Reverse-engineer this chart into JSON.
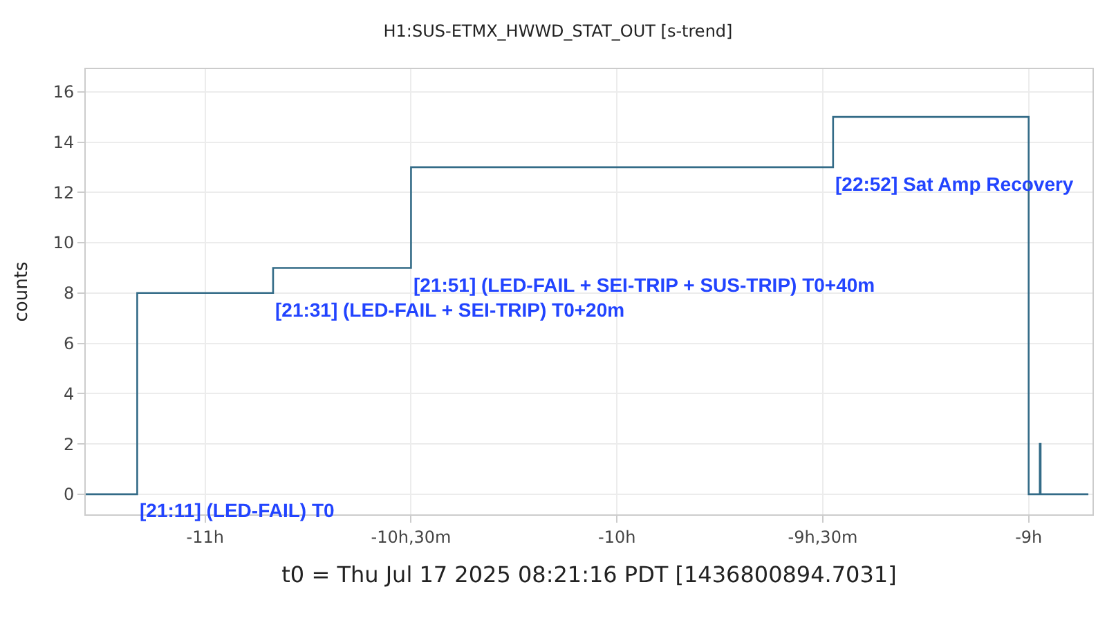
{
  "chart_data": {
    "type": "step",
    "title": "H1:SUS-ETMX_HWWD_STAT_OUT [s-trend]",
    "xlabel": "t0 = Thu Jul 17 2025 08:21:16 PDT [1436800894.7031]",
    "ylabel": "counts",
    "x": [
      -11.29,
      -11.165,
      -10.835,
      -10.5,
      -9.475,
      -9.0,
      -8.973,
      -8.971,
      -8.855
    ],
    "series": [
      {
        "color": "#336b87",
        "values": [
          0,
          8,
          9,
          13,
          15,
          0,
          2,
          0,
          0
        ]
      }
    ],
    "xlim": [
      -11.29,
      -8.845
    ],
    "ylim": [
      -0.8,
      16.9
    ],
    "xticks": [
      {
        "value": -11,
        "label": "-11h"
      },
      {
        "value": -10.5,
        "label": "-10h,30m"
      },
      {
        "value": -10,
        "label": "-10h"
      },
      {
        "value": -9.5,
        "label": "-9h,30m"
      },
      {
        "value": -9,
        "label": "-9h"
      }
    ],
    "yticks": [
      0,
      2,
      4,
      6,
      8,
      10,
      12,
      14,
      16
    ],
    "annotations": [
      {
        "text": "[21:11] (LED-FAIL) T0",
        "x": -11.165,
        "y": 0
      },
      {
        "text": "[21:31] (LED-FAIL + SEI-TRIP) T0+20m",
        "x": -10.835,
        "y": 8
      },
      {
        "text": "[21:51] (LED-FAIL + SEI-TRIP + SUS-TRIP) T0+40m",
        "x": -10.5,
        "y": 9
      },
      {
        "text": "[22:52] Sat Amp Recovery",
        "x": -9.475,
        "y": 13
      }
    ],
    "grid": true,
    "legend": false,
    "line_style": "solid",
    "marker": "none"
  }
}
